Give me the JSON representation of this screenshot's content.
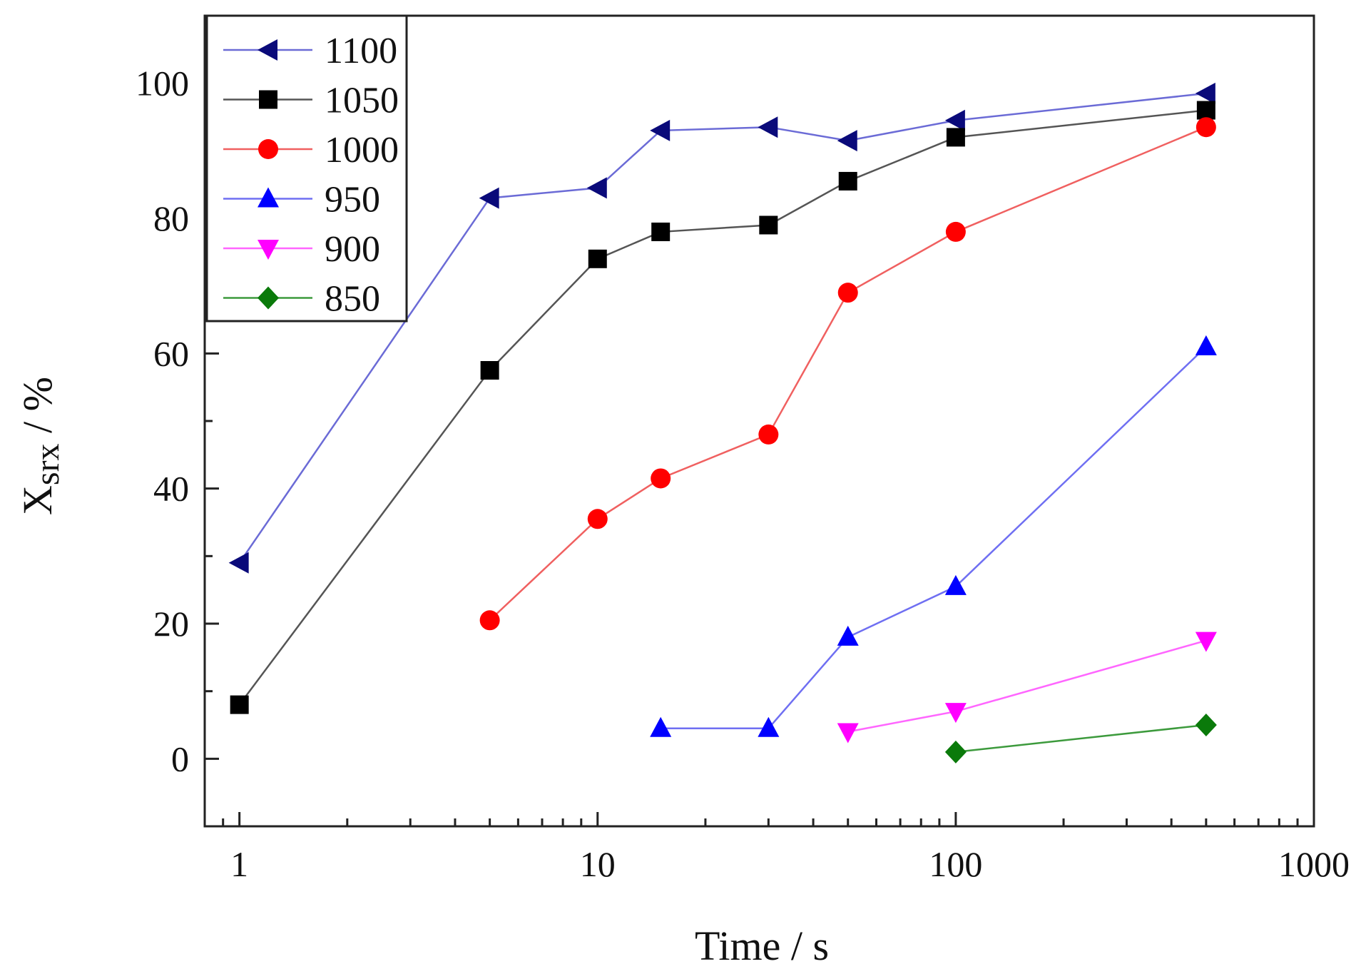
{
  "chart_data": {
    "type": "line",
    "title": "",
    "xlabel": "Time / s",
    "ylabel_main": "X",
    "ylabel_sub": "srx",
    "ylabel_rest": " / %",
    "xscale": "log",
    "xlim": [
      0.8,
      1000
    ],
    "ylim": [
      -10,
      110
    ],
    "xticks": [
      1,
      10,
      100,
      1000
    ],
    "xtick_labels": [
      "1",
      "10",
      "100",
      "1000"
    ],
    "yticks": [
      0,
      20,
      40,
      60,
      80,
      100
    ],
    "ytick_labels": [
      "0",
      "20",
      "40",
      "60",
      "80",
      "100"
    ],
    "grid": false,
    "legend_position": "top-left",
    "series": [
      {
        "name": "1100",
        "color": "#6b6bd6",
        "marker_color": "#0a0a7a",
        "marker": "triangle-left",
        "x": [
          1,
          5,
          10,
          15,
          30,
          50,
          100,
          500
        ],
        "y": [
          29,
          83,
          84.5,
          93,
          93.5,
          91.5,
          94.5,
          98.5
        ]
      },
      {
        "name": "1050",
        "color": "#555555",
        "marker_color": "#000000",
        "marker": "square",
        "x": [
          1,
          5,
          10,
          15,
          30,
          50,
          100,
          500
        ],
        "y": [
          8,
          57.5,
          74,
          78,
          79,
          85.5,
          92,
          96
        ]
      },
      {
        "name": "1000",
        "color": "#f06060",
        "marker_color": "#ff0000",
        "marker": "circle",
        "x": [
          5,
          10,
          15,
          30,
          50,
          100,
          500
        ],
        "y": [
          20.5,
          35.5,
          41.5,
          48,
          69,
          78,
          93.5
        ]
      },
      {
        "name": "950",
        "color": "#6f6ff2",
        "marker_color": "#0000ff",
        "marker": "triangle-up",
        "x": [
          15,
          30,
          50,
          100,
          500
        ],
        "y": [
          4.5,
          4.5,
          18,
          25.5,
          61
        ]
      },
      {
        "name": "900",
        "color": "#ff66ff",
        "marker_color": "#ff00ff",
        "marker": "triangle-down",
        "x": [
          50,
          100,
          500
        ],
        "y": [
          4,
          7,
          17.5
        ]
      },
      {
        "name": "850",
        "color": "#3c9a3c",
        "marker_color": "#0a7a0a",
        "marker": "diamond",
        "x": [
          100,
          500
        ],
        "y": [
          1,
          5
        ]
      }
    ]
  }
}
